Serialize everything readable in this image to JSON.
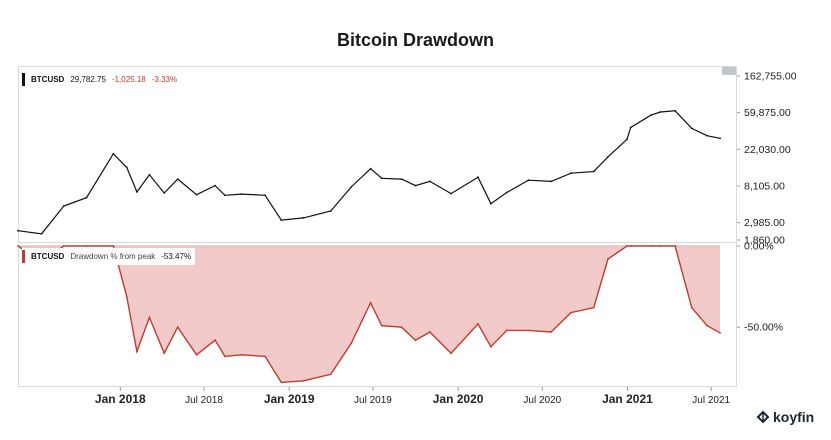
{
  "title": "Bitcoin Drawdown",
  "brand": "koyfin",
  "legend_price": {
    "symbol": "BTCUSD",
    "value": "29,782.75",
    "change": "-1,025.18",
    "change_pct": "-3.33%"
  },
  "legend_drawdown": {
    "symbol": "BTCUSD",
    "label": "Drawdown % from peak",
    "value": "-53.47%"
  },
  "colors": {
    "price_line": "#111111",
    "drawdown_line": "#c23b2b",
    "drawdown_fill": "#f2caca",
    "negative_text": "#c23b2b"
  },
  "chart_data": [
    {
      "type": "line",
      "scale": "log",
      "ylim": [
        1860,
        162755
      ],
      "y_ticks": [
        162755.0,
        59875.0,
        22030.0,
        8105.0,
        2985.0,
        1860.0
      ],
      "y_tick_labels": [
        "162,755.00",
        "59,875.00",
        "22,030.00",
        "8,105.00",
        "2,985.00",
        "1,860.00"
      ],
      "x": [
        "2017-05-25",
        "2017-07-15",
        "2017-09-01",
        "2017-10-20",
        "2017-12-17",
        "2018-01-15",
        "2018-02-06",
        "2018-03-05",
        "2018-04-06",
        "2018-05-05",
        "2018-06-15",
        "2018-07-25",
        "2018-08-15",
        "2018-09-20",
        "2018-11-10",
        "2018-12-15",
        "2019-02-01",
        "2019-04-01",
        "2019-05-15",
        "2019-06-26",
        "2019-07-20",
        "2019-09-01",
        "2019-10-01",
        "2019-11-01",
        "2019-12-17",
        "2020-02-13",
        "2020-03-12",
        "2020-04-15",
        "2020-06-01",
        "2020-07-20",
        "2020-09-01",
        "2020-10-20",
        "2020-11-20",
        "2020-12-31",
        "2021-01-08",
        "2021-02-21",
        "2021-03-13",
        "2021-04-14",
        "2021-05-20",
        "2021-06-22",
        "2021-07-20"
      ],
      "series": [
        {
          "name": "BTCUSD",
          "values": [
            2400,
            2200,
            4700,
            5900,
            19500,
            13500,
            6900,
            11000,
            6700,
            9800,
            6400,
            8200,
            6300,
            6500,
            6300,
            3200,
            3400,
            4100,
            7900,
            13000,
            10000,
            9800,
            8200,
            9200,
            6600,
            10300,
            5000,
            6800,
            9500,
            9200,
            11500,
            12000,
            18000,
            29000,
            40000,
            56000,
            61000,
            63000,
            39000,
            32000,
            29783
          ]
        }
      ]
    },
    {
      "type": "area",
      "ylim": [
        -85,
        0
      ],
      "y_ticks": [
        0,
        -50
      ],
      "y_tick_labels": [
        "0.00%",
        "-50.00%"
      ],
      "x": [
        "2017-05-25",
        "2017-07-15",
        "2017-09-01",
        "2017-10-20",
        "2017-12-17",
        "2018-01-15",
        "2018-02-06",
        "2018-03-05",
        "2018-04-06",
        "2018-05-05",
        "2018-06-15",
        "2018-07-25",
        "2018-08-15",
        "2018-09-20",
        "2018-11-10",
        "2018-12-15",
        "2019-02-01",
        "2019-04-01",
        "2019-05-15",
        "2019-06-26",
        "2019-07-20",
        "2019-09-01",
        "2019-10-01",
        "2019-11-01",
        "2019-12-17",
        "2020-02-13",
        "2020-03-12",
        "2020-04-15",
        "2020-06-01",
        "2020-07-20",
        "2020-09-01",
        "2020-10-20",
        "2020-11-20",
        "2020-12-31",
        "2021-01-08",
        "2021-02-21",
        "2021-03-13",
        "2021-04-14",
        "2021-05-20",
        "2021-06-22",
        "2021-07-20"
      ],
      "series": [
        {
          "name": "Drawdown % from peak",
          "values": [
            0,
            -10,
            0,
            0,
            0,
            -31,
            -65,
            -44,
            -66,
            -50,
            -67,
            -58,
            -68,
            -67,
            -68,
            -84,
            -83,
            -79,
            -60,
            -35,
            -49,
            -50,
            -58,
            -53,
            -66,
            -48,
            -62,
            -52,
            -52,
            -53,
            -41,
            -38,
            -8,
            0,
            0,
            0,
            0,
            0,
            -38,
            -49,
            -53.47
          ]
        }
      ],
      "x_tick_labels": [
        "Jan 2018",
        "Jul 2018",
        "Jan 2019",
        "Jul 2019",
        "Jan 2020",
        "Jul 2020",
        "Jan 2021",
        "Jul 2021"
      ],
      "x_tick_dates": [
        "2018-01-01",
        "2018-07-01",
        "2019-01-01",
        "2019-07-01",
        "2020-01-01",
        "2020-07-01",
        "2021-01-01",
        "2021-07-01"
      ],
      "x_tick_bold": [
        true,
        false,
        true,
        false,
        true,
        false,
        true,
        false
      ]
    }
  ]
}
